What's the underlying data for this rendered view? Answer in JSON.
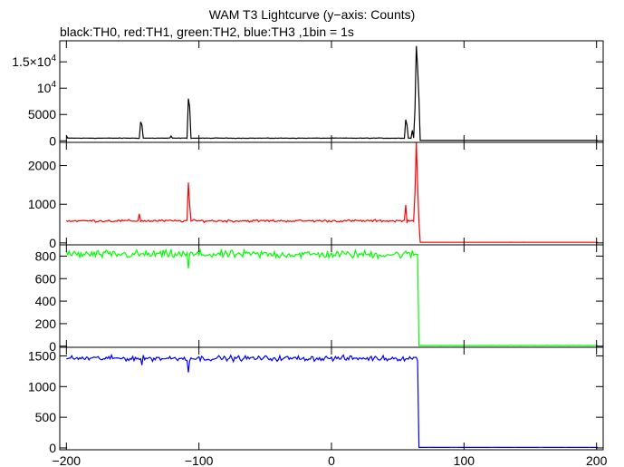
{
  "chart_data": {
    "type": "line",
    "title": "WAM T3 Lightcurve (y−axis: Counts)",
    "subtitle": "black:TH0, red:TH1, green:TH2, blue:TH3 ,1bin = 1s",
    "xlim": [
      -205,
      205
    ],
    "x_ticks": [
      -200,
      -100,
      0,
      100,
      200
    ],
    "x_tick_labels": [
      "−200",
      "−100",
      "0",
      "100",
      "200"
    ],
    "grid": false,
    "panels": [
      {
        "series_label": "TH0",
        "color": "#000000",
        "ylim": [
          -300,
          19000
        ],
        "y_ticks": [
          0,
          5000,
          10000,
          15000
        ],
        "y_tick_labels": [
          {
            "text": "0"
          },
          {
            "text": "5000"
          },
          {
            "text": "10",
            "sup": "4"
          },
          {
            "text": "1.5×10",
            "sup": "4"
          }
        ],
        "baseline": 500,
        "noise": 40,
        "spikes": [
          [
            -200,
            1000
          ],
          [
            -144,
            3600
          ],
          [
            -143,
            3000
          ],
          [
            -121,
            900
          ],
          [
            -108,
            8000
          ],
          [
            -107,
            6500
          ],
          [
            56,
            4000
          ],
          [
            57,
            3000
          ],
          [
            61,
            2000
          ],
          [
            63,
            6000
          ],
          [
            64,
            18000
          ],
          [
            65,
            14000
          ],
          [
            66,
            8000
          ]
        ],
        "drop_x": 67,
        "end_level": 60
      },
      {
        "series_label": "TH1",
        "color": "#ff0000",
        "ylim": [
          -50,
          2600
        ],
        "y_ticks": [
          0,
          1000,
          2000
        ],
        "y_tick_labels": [
          {
            "text": "0"
          },
          {
            "text": "1000"
          },
          {
            "text": "2000"
          }
        ],
        "baseline": 570,
        "noise": 25,
        "spikes": [
          [
            -145,
            750
          ],
          [
            -108,
            1560
          ],
          [
            -107,
            1000
          ],
          [
            56,
            980
          ],
          [
            63,
            1300
          ],
          [
            64,
            2600
          ],
          [
            65,
            1500
          ]
        ],
        "drop_x": 67,
        "end_level": 15
      },
      {
        "series_label": "TH2",
        "color": "#00ff00",
        "ylim": [
          -10,
          900
        ],
        "y_ticks": [
          0,
          200,
          400,
          600,
          800
        ],
        "y_tick_labels": [
          {
            "text": "0"
          },
          {
            "text": "200"
          },
          {
            "text": "400"
          },
          {
            "text": "600"
          },
          {
            "text": "800"
          }
        ],
        "baseline": 815,
        "noise": 30,
        "spikes": [
          [
            -108,
            690
          ]
        ],
        "drop_x": 66,
        "end_level": 5
      },
      {
        "series_label": "TH3",
        "color": "#0000ff",
        "ylim": [
          -30,
          1640
        ],
        "y_ticks": [
          0,
          500,
          1000,
          1500
        ],
        "y_tick_labels": [
          {
            "text": "0"
          },
          {
            "text": "500"
          },
          {
            "text": "1000"
          },
          {
            "text": "1500"
          }
        ],
        "baseline": 1460,
        "noise": 35,
        "spikes": [
          [
            -143,
            1350
          ],
          [
            -108,
            1230
          ]
        ],
        "drop_x": 66,
        "end_level": 8
      }
    ]
  }
}
